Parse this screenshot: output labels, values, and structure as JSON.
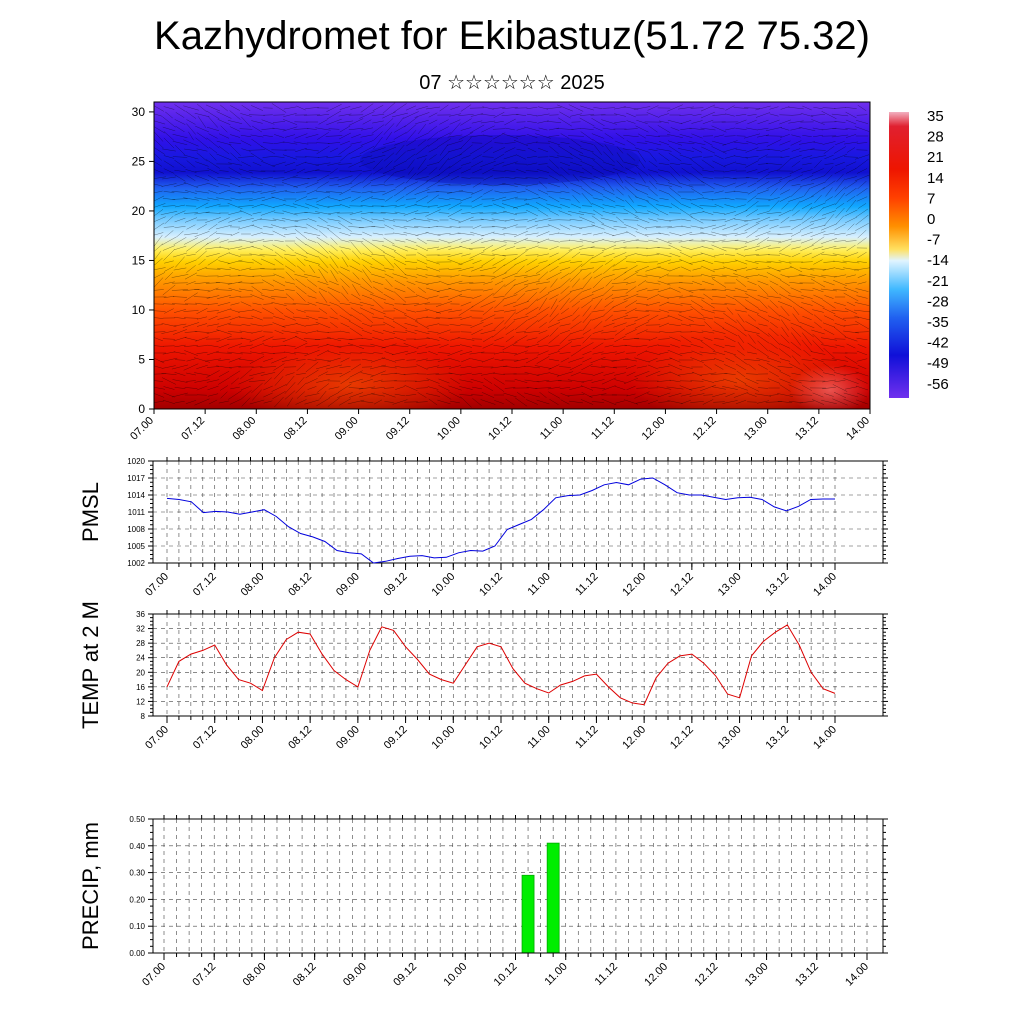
{
  "title": "Kazhydromet for Ekibastuz(51.72 75.32)",
  "subtitle": "07 ☆☆☆☆☆☆ 2025",
  "x_tick_labels": [
    "07.00",
    "07.12",
    "08.00",
    "08.12",
    "09.00",
    "09.12",
    "10.00",
    "10.12",
    "11.00",
    "11.12",
    "12.00",
    "12.12",
    "13.00",
    "13.12",
    "14.00"
  ],
  "chart_data": [
    {
      "type": "heatmap",
      "name": "temperature-cross-section",
      "x_ticks": [
        "07.00",
        "07.12",
        "08.00",
        "08.12",
        "09.00",
        "09.12",
        "10.00",
        "10.12",
        "11.00",
        "11.12",
        "12.00",
        "12.12",
        "13.00",
        "13.12",
        "14.00"
      ],
      "ylim": [
        0,
        31
      ],
      "yticks": [
        0,
        5,
        10,
        15,
        20,
        25,
        30
      ],
      "colorbar": {
        "labels": [
          35,
          28,
          21,
          14,
          7,
          0,
          -7,
          -14,
          -21,
          -28,
          -35,
          -42,
          -49,
          -56
        ],
        "placement": "right"
      },
      "overlay": "wind vectors"
    },
    {
      "type": "line",
      "ylabel": "PMSL",
      "ylim": [
        1002,
        1020
      ],
      "yticks": [
        1002,
        1005,
        1008,
        1011,
        1014,
        1017,
        1020
      ],
      "color": "#0000dd",
      "x_ticks": [
        "07.00",
        "07.12",
        "08.00",
        "08.12",
        "09.00",
        "09.12",
        "10.00",
        "10.12",
        "11.00",
        "11.12",
        "12.00",
        "12.12",
        "13.00",
        "13.12",
        "14.00"
      ],
      "values": [
        1013.4,
        1013.2,
        1012.8,
        1010.9,
        1011.1,
        1011.0,
        1010.6,
        1011.0,
        1011.4,
        1010.2,
        1008.4,
        1007.2,
        1006.6,
        1005.8,
        1004.2,
        1003.8,
        1003.6,
        1002.0,
        1002.3,
        1002.8,
        1003.2,
        1003.3,
        1002.9,
        1003.0,
        1003.8,
        1004.2,
        1004.1,
        1005.0,
        1007.9,
        1008.8,
        1009.7,
        1011.4,
        1013.5,
        1013.9,
        1014.0,
        1014.8,
        1015.8,
        1016.2,
        1015.8,
        1016.8,
        1017.0,
        1015.8,
        1014.4,
        1014.0,
        1014.0,
        1013.6,
        1013.2,
        1013.5,
        1013.6,
        1013.2,
        1011.9,
        1011.2,
        1012.0,
        1013.2,
        1013.3,
        1013.3
      ]
    },
    {
      "type": "line",
      "ylabel": "TEMP at 2 M",
      "ylim": [
        8,
        36
      ],
      "yticks": [
        8,
        12,
        16,
        20,
        24,
        28,
        32,
        36
      ],
      "color": "#dd0000",
      "x_ticks": [
        "07.00",
        "07.12",
        "08.00",
        "08.12",
        "09.00",
        "09.12",
        "10.00",
        "10.12",
        "11.00",
        "11.12",
        "12.00",
        "12.12",
        "13.00",
        "13.12",
        "14.00"
      ],
      "values": [
        16,
        23,
        25,
        26,
        27.5,
        22,
        18,
        17,
        15,
        24,
        29,
        31,
        30.5,
        25,
        20.5,
        18,
        16,
        26,
        32.5,
        31.5,
        27,
        23.5,
        19.5,
        18,
        17,
        22,
        27,
        28,
        27,
        21,
        17,
        15.5,
        14.3,
        16.5,
        17.5,
        19,
        19.5,
        16,
        13,
        11.6,
        11.1,
        18.5,
        22.5,
        24.5,
        25,
        22.5,
        19,
        14,
        13,
        24.5,
        28.5,
        31,
        33,
        27.5,
        20,
        15.5,
        14.2
      ]
    },
    {
      "type": "bar",
      "ylabel": "PRECIP, mm",
      "ylim": [
        0,
        0.5
      ],
      "yticks": [
        "0.00",
        "0.10",
        "0.20",
        "0.30",
        "0.40",
        "0.50"
      ],
      "color": "#00ee00",
      "x_ticks": [
        "07.00",
        "07.12",
        "08.00",
        "08.12",
        "09.00",
        "09.12",
        "10.00",
        "10.12",
        "11.00",
        "11.12",
        "12.00",
        "12.12",
        "13.00",
        "13.12",
        "14.00"
      ],
      "bars": [
        {
          "x": "10.15",
          "value": 0.29
        },
        {
          "x": "10.21",
          "value": 0.41
        }
      ]
    }
  ]
}
